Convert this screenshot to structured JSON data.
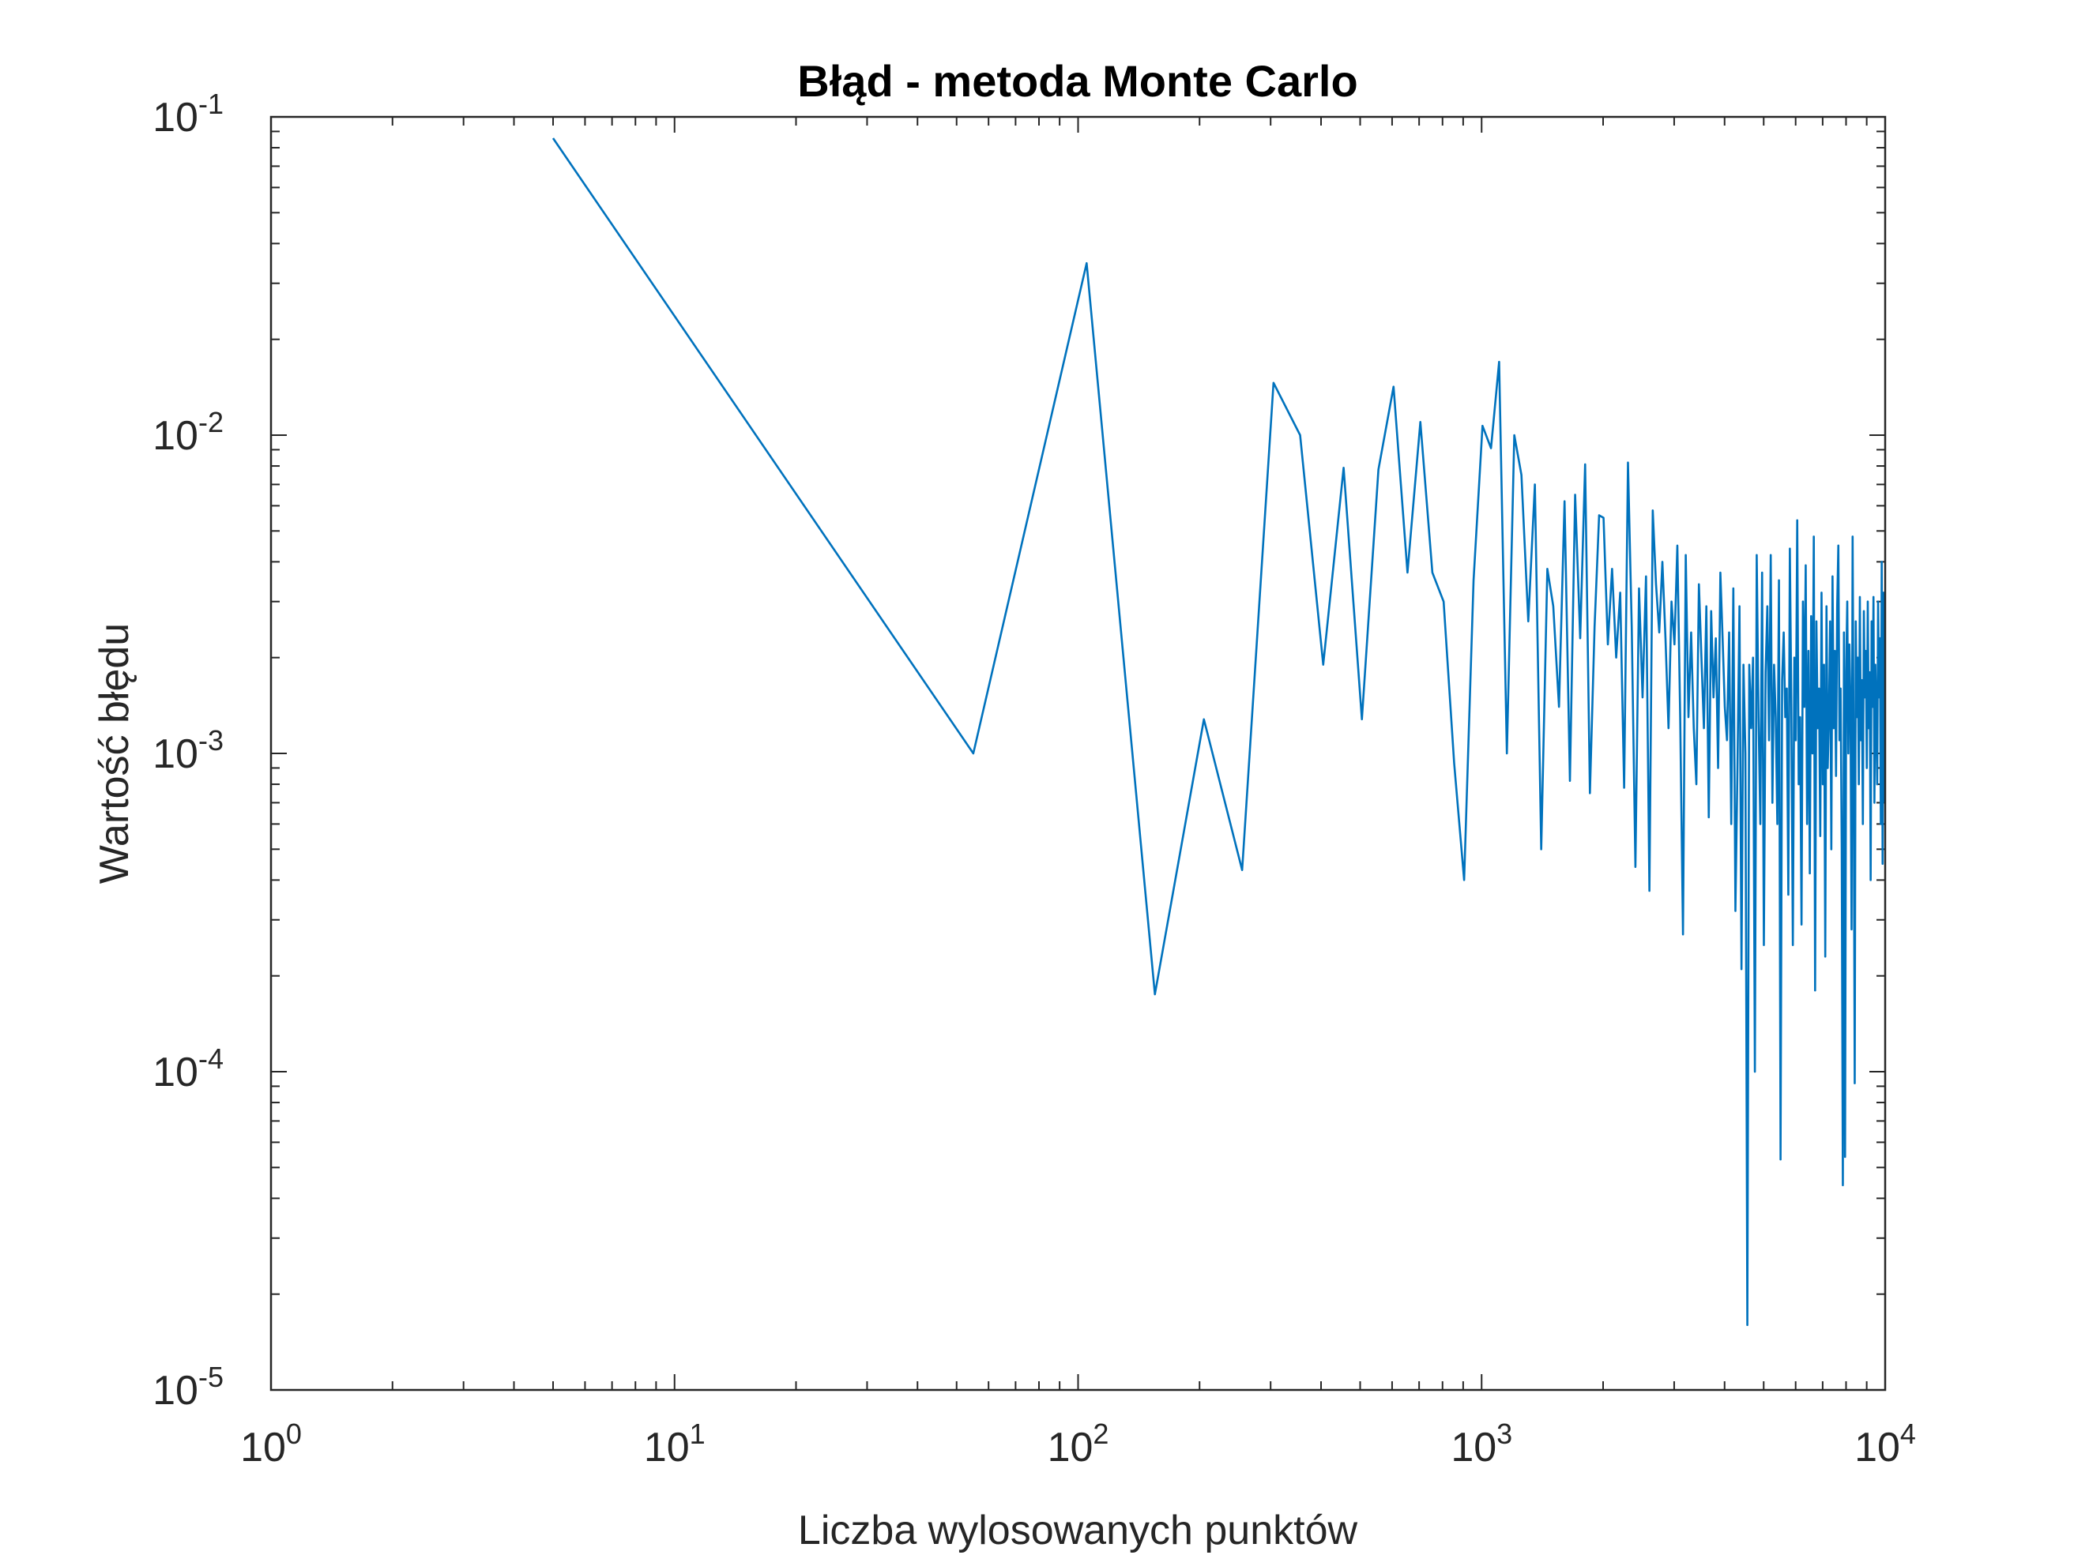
{
  "chart_data": {
    "type": "line",
    "title": "Błąd - metoda Monte Carlo",
    "xlabel": "Liczba wylosowanych punktów",
    "ylabel": "Wartość błędu",
    "xscale": "log",
    "yscale": "log",
    "xlim": [
      1,
      10000
    ],
    "ylim": [
      1e-05,
      0.1
    ],
    "xticks": [
      {
        "value": 1,
        "label": "10^0"
      },
      {
        "value": 10,
        "label": "10^1"
      },
      {
        "value": 100,
        "label": "10^2"
      },
      {
        "value": 1000,
        "label": "10^3"
      },
      {
        "value": 10000,
        "label": "10^4"
      }
    ],
    "yticks": [
      {
        "value": 1e-05,
        "label": "10^-5"
      },
      {
        "value": 0.0001,
        "label": "10^-4"
      },
      {
        "value": 0.001,
        "label": "10^-3"
      },
      {
        "value": 0.01,
        "label": "10^-2"
      },
      {
        "value": 0.1,
        "label": "10^-1"
      }
    ],
    "series": [
      {
        "color": "#0072BD",
        "x": [
          5,
          55,
          105,
          155,
          205,
          255,
          305,
          355,
          405,
          455,
          505,
          555,
          605,
          655,
          705,
          755,
          805,
          855,
          905,
          955,
          1005,
          1055,
          1105,
          1155,
          1205,
          1255,
          1305,
          1355,
          1405,
          1455,
          1505,
          1555,
          1605,
          1655,
          1705,
          1755,
          1805,
          1855,
          1905,
          1955,
          2005,
          2055,
          2105,
          2155,
          2205,
          2255,
          2305,
          2355,
          2405,
          2455,
          2505,
          2555,
          2605,
          2655,
          2705,
          2755,
          2805,
          2855,
          2905,
          2955,
          3005,
          3055,
          3105,
          3155,
          3205,
          3255,
          3305,
          3355,
          3405,
          3455,
          3505,
          3555,
          3605,
          3655,
          3705,
          3755,
          3805,
          3855,
          3905,
          3955,
          4005,
          4055,
          4105,
          4155,
          4205,
          4255,
          4305,
          4355,
          4405,
          4455,
          4505,
          4555,
          4605,
          4655,
          4705,
          4755,
          4805,
          4855,
          4905,
          4955,
          5005,
          5055,
          5105,
          5155,
          5205,
          5255,
          5305,
          5355,
          5405,
          5455,
          5505,
          5555,
          5605,
          5655,
          5705,
          5755,
          5805,
          5855,
          5905,
          5955,
          6005,
          6055,
          6105,
          6155,
          6205,
          6255,
          6305,
          6355,
          6405,
          6455,
          6505,
          6555,
          6605,
          6655,
          6705,
          6755,
          6805,
          6855,
          6905,
          6955,
          7005,
          7055,
          7105,
          7155,
          7205,
          7255,
          7305,
          7355,
          7405,
          7455,
          7505,
          7555,
          7605,
          7655,
          7705,
          7755,
          7805,
          7855,
          7905,
          7955,
          8005,
          8055,
          8105,
          8155,
          8205,
          8255,
          8305,
          8355,
          8405,
          8455,
          8505,
          8555,
          8605,
          8655,
          8705,
          8755,
          8805,
          8855,
          8905,
          8955,
          9005,
          9055,
          9105,
          9155,
          9205,
          9255,
          9305,
          9355,
          9405,
          9455,
          9505,
          9555,
          9605,
          9655,
          9705,
          9755,
          9805,
          9855,
          9905,
          9955
        ],
        "values": [
          0.0857,
          0.001,
          0.0347,
          0.000175,
          0.00128,
          0.00043,
          0.0146,
          0.01,
          0.0019,
          0.0079,
          0.00128,
          0.0078,
          0.0142,
          0.0037,
          0.011,
          0.0037,
          0.003,
          0.00093,
          0.0004,
          0.0035,
          0.0107,
          0.0091,
          0.017,
          0.001,
          0.01,
          0.0075,
          0.0026,
          0.007,
          0.0005,
          0.0038,
          0.0029,
          0.0014,
          0.0062,
          0.00082,
          0.0065,
          0.0023,
          0.0081,
          0.00075,
          0.0025,
          0.0056,
          0.0055,
          0.0022,
          0.0038,
          0.002,
          0.0032,
          0.00078,
          0.0082,
          0.0025,
          0.00044,
          0.0033,
          0.0015,
          0.0036,
          0.00037,
          0.0058,
          0.0034,
          0.0024,
          0.004,
          0.0023,
          0.0012,
          0.003,
          0.0022,
          0.0045,
          0.0013,
          0.00027,
          0.0042,
          0.0013,
          0.0024,
          0.0012,
          0.0008,
          0.0034,
          0.002,
          0.0012,
          0.0029,
          0.00063,
          0.0028,
          0.0015,
          0.0023,
          0.0009,
          0.0037,
          0.0023,
          0.0014,
          0.0011,
          0.0024,
          0.0006,
          0.0033,
          0.00032,
          0.0009,
          0.0029,
          0.00021,
          0.0019,
          0.001,
          1.6e-05,
          0.0019,
          0.0012,
          0.002,
          0.0001,
          0.0042,
          0.0013,
          0.0006,
          0.0037,
          0.00025,
          0.0018,
          0.0029,
          0.0011,
          0.0042,
          0.0007,
          0.0019,
          0.0013,
          0.0006,
          0.0035,
          5.3e-05,
          0.0017,
          0.0024,
          0.0013,
          0.0016,
          0.00036,
          0.0044,
          0.0014,
          0.00025,
          0.002,
          0.0011,
          0.0054,
          0.0008,
          0.0013,
          0.00029,
          0.003,
          0.0014,
          0.0039,
          0.0006,
          0.0021,
          0.00042,
          0.0027,
          0.001,
          0.0048,
          0.00018,
          0.0026,
          0.0012,
          0.0016,
          0.00055,
          0.0032,
          0.0008,
          0.0019,
          0.00023,
          0.0029,
          0.0009,
          0.0013,
          0.0026,
          0.0005,
          0.0036,
          0.0012,
          0.0021,
          0.00085,
          0.0029,
          0.0045,
          0.0011,
          0.0016,
          0.0005,
          4.4e-05,
          0.0024,
          5.4e-05,
          0.0018,
          0.003,
          0.001,
          0.0022,
          0.0014,
          0.00028,
          0.0048,
          0.0009,
          9.2e-05,
          0.0026,
          0.0013,
          0.002,
          0.0008,
          0.0031,
          0.0011,
          0.0017,
          0.0006,
          0.0028,
          0.0015,
          0.0021,
          0.0009,
          0.003,
          0.0012,
          0.0018,
          0.0004,
          0.0026,
          0.0014,
          0.0031,
          0.0007,
          0.0019,
          0.0013,
          0.0008,
          0.003,
          0.0015,
          0.0023,
          0.0006,
          0.004,
          0.00045,
          0.0032,
          0.0007
        ]
      }
    ]
  }
}
